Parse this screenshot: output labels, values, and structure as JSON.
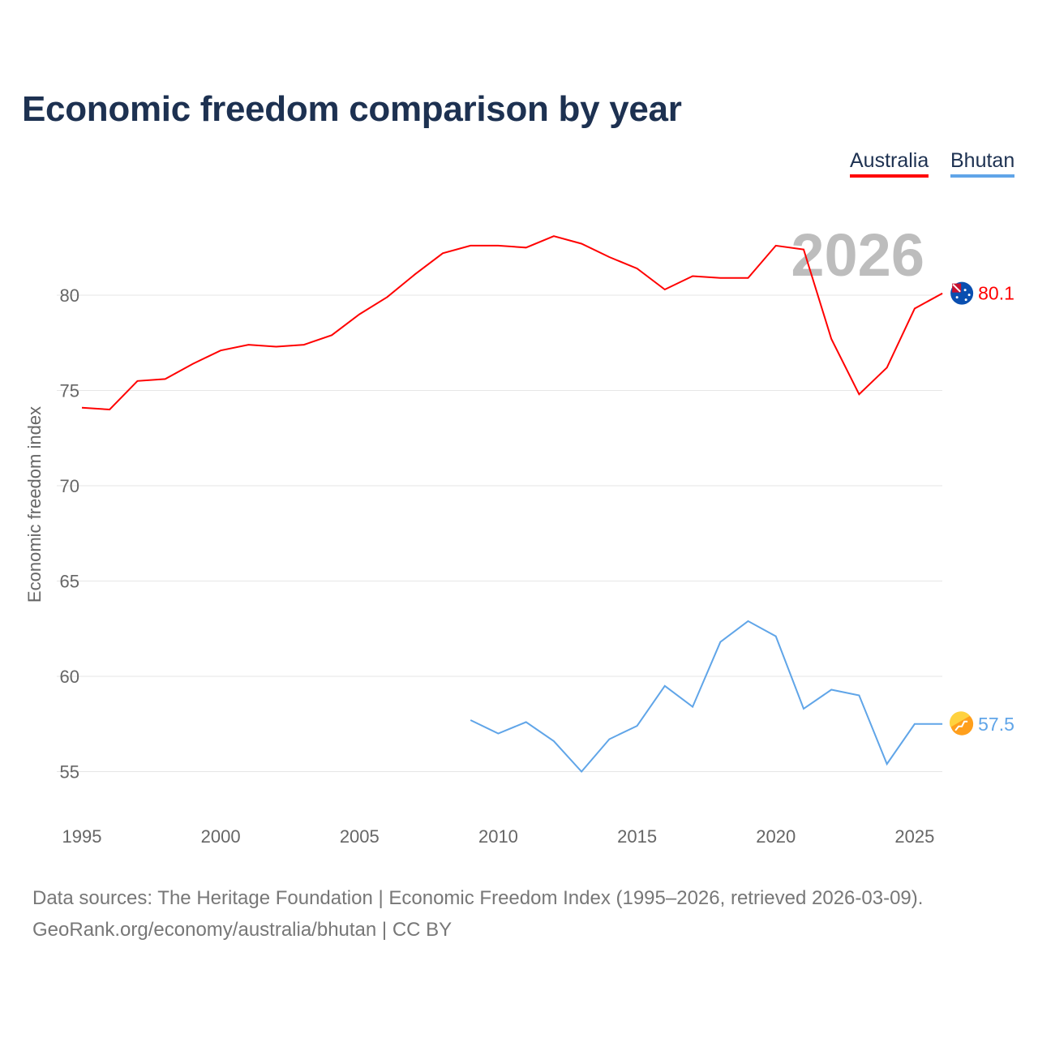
{
  "chart_data": {
    "type": "line",
    "title": "Economic freedom comparison by year",
    "xlabel": "",
    "ylabel": "Economic freedom index",
    "xlim": [
      1995,
      2026
    ],
    "ylim": [
      53,
      84
    ],
    "yticks": [
      55,
      60,
      65,
      70,
      75,
      80
    ],
    "xticks": [
      1995,
      2000,
      2005,
      2010,
      2015,
      2020,
      2025
    ],
    "grid": true,
    "legend_position": "top-right",
    "year_label": "2026",
    "series": [
      {
        "name": "Australia",
        "color": "#ff0000",
        "end_label": "80.1",
        "flag": "australia-flag",
        "x": [
          1995,
          1996,
          1997,
          1998,
          1999,
          2000,
          2001,
          2002,
          2003,
          2004,
          2005,
          2006,
          2007,
          2008,
          2009,
          2010,
          2011,
          2012,
          2013,
          2014,
          2015,
          2016,
          2017,
          2018,
          2019,
          2020,
          2021,
          2022,
          2023,
          2024,
          2025,
          2026
        ],
        "values": [
          74.1,
          74.0,
          75.5,
          75.6,
          76.4,
          77.1,
          77.4,
          77.3,
          77.4,
          77.9,
          79.0,
          79.9,
          81.1,
          82.2,
          82.6,
          82.6,
          82.5,
          83.1,
          82.7,
          82.0,
          81.4,
          80.3,
          81.0,
          80.9,
          80.9,
          82.6,
          82.4,
          77.7,
          74.8,
          76.2,
          79.3,
          80.1
        ]
      },
      {
        "name": "Bhutan",
        "color": "#60a5e8",
        "end_label": "57.5",
        "flag": "bhutan-flag",
        "x": [
          2009,
          2010,
          2011,
          2012,
          2013,
          2014,
          2015,
          2016,
          2017,
          2018,
          2019,
          2020,
          2021,
          2022,
          2023,
          2024,
          2025,
          2026
        ],
        "values": [
          57.7,
          57.0,
          57.6,
          56.6,
          55.0,
          56.7,
          57.4,
          59.5,
          58.4,
          61.8,
          62.9,
          62.1,
          58.3,
          59.3,
          59.0,
          55.4,
          57.5,
          57.5
        ]
      }
    ]
  },
  "footer": {
    "line1": "Data sources: The Heritage Foundation | Economic Freedom Index (1995–2026, retrieved 2026-03-09).",
    "line2": "GeoRank.org/economy/australia/bhutan | CC BY"
  }
}
